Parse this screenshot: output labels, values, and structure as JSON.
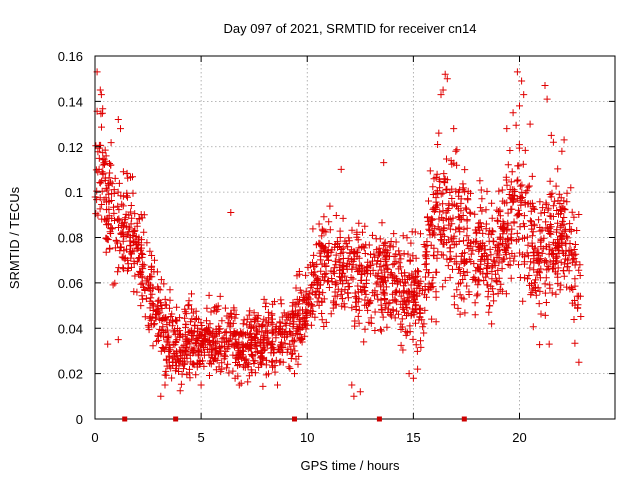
{
  "chart_data": {
    "type": "scatter",
    "title": "Day 097 of 2021, SRMTID for receiver cn14",
    "xlabel": "GPS time / hours",
    "ylabel": "SRMTID / TECUs",
    "xlim": [
      0,
      24.5
    ],
    "ylim": [
      0,
      0.16
    ],
    "x_ticks": [
      0,
      5,
      10,
      15,
      20
    ],
    "x_tick_labels": [
      "0",
      "5",
      "10",
      "15",
      "20"
    ],
    "y_ticks": [
      0,
      0.02,
      0.04,
      0.06,
      0.08,
      0.1,
      0.12,
      0.14,
      0.16
    ],
    "y_tick_labels": [
      "0",
      "0.02",
      "0.04",
      "0.06",
      "0.08",
      "0.1",
      "0.12",
      "0.14",
      "0.16"
    ],
    "grid": true,
    "marker": "+",
    "series_color": "#e00000",
    "gap_marker_color": "#cc0000",
    "gap_markers_x": [
      1.4,
      3.8,
      9.4,
      13.4,
      17.4
    ],
    "series": [
      {
        "name": "cn14",
        "profile_x": [
          0.0,
          0.3,
          0.6,
          1.0,
          1.5,
          2.0,
          2.5,
          3.0,
          3.5,
          4.0,
          5.0,
          6.0,
          7.0,
          8.0,
          9.0,
          9.8,
          10.3,
          11.0,
          12.0,
          13.0,
          14.0,
          14.8,
          15.3,
          15.8,
          16.3,
          17.0,
          18.0,
          18.8,
          19.3,
          19.8,
          20.3,
          20.8,
          21.5,
          22.0,
          22.5,
          22.9
        ],
        "profile_y": [
          0.1,
          0.115,
          0.095,
          0.085,
          0.085,
          0.075,
          0.06,
          0.045,
          0.038,
          0.035,
          0.033,
          0.035,
          0.032,
          0.035,
          0.038,
          0.043,
          0.06,
          0.068,
          0.065,
          0.062,
          0.062,
          0.055,
          0.05,
          0.075,
          0.09,
          0.08,
          0.075,
          0.07,
          0.08,
          0.095,
          0.085,
          0.07,
          0.075,
          0.08,
          0.07,
          0.06
        ],
        "spread_x": [
          0.0,
          1.0,
          2.0,
          3.0,
          5.0,
          9.0,
          10.0,
          15.0,
          16.0,
          19.0,
          20.0,
          21.0,
          23.0
        ],
        "spread_y": [
          0.045,
          0.04,
          0.035,
          0.028,
          0.022,
          0.022,
          0.03,
          0.033,
          0.045,
          0.04,
          0.045,
          0.04,
          0.035
        ],
        "peak_points": [
          [
            0.1,
            0.153
          ],
          [
            0.25,
            0.145
          ],
          [
            0.3,
            0.143
          ],
          [
            1.1,
            0.132
          ],
          [
            1.2,
            0.128
          ],
          [
            16.2,
            0.126
          ],
          [
            16.3,
            0.143
          ],
          [
            16.4,
            0.145
          ],
          [
            16.5,
            0.152
          ],
          [
            16.6,
            0.15
          ],
          [
            16.9,
            0.128
          ],
          [
            17.0,
            0.118
          ],
          [
            19.9,
            0.153
          ],
          [
            20.1,
            0.149
          ],
          [
            20.2,
            0.143
          ],
          [
            20.0,
            0.138
          ],
          [
            19.7,
            0.135
          ],
          [
            19.4,
            0.128
          ],
          [
            20.5,
            0.13
          ],
          [
            21.2,
            0.147
          ],
          [
            21.3,
            0.141
          ],
          [
            21.5,
            0.125
          ],
          [
            21.6,
            0.122
          ],
          [
            22.1,
            0.123
          ],
          [
            22.0,
            0.118
          ],
          [
            13.6,
            0.113
          ],
          [
            11.6,
            0.11
          ],
          [
            6.4,
            0.091
          ]
        ],
        "low_points": [
          [
            3.1,
            0.01
          ],
          [
            3.3,
            0.015
          ],
          [
            5.0,
            0.015
          ],
          [
            6.6,
            0.018
          ],
          [
            6.8,
            0.015
          ],
          [
            8.6,
            0.015
          ],
          [
            9.4,
            0.02
          ],
          [
            12.1,
            0.015
          ],
          [
            12.2,
            0.01
          ],
          [
            12.5,
            0.012
          ],
          [
            14.8,
            0.02
          ],
          [
            15.0,
            0.018
          ],
          [
            15.2,
            0.022
          ],
          [
            22.8,
            0.025
          ],
          [
            21.4,
            0.033
          ],
          [
            1.1,
            0.035
          ],
          [
            0.6,
            0.033
          ]
        ],
        "gap_intervals": [
          [
            23.0,
            24.5
          ]
        ],
        "point_count": 2300,
        "seed": 9721
      }
    ]
  }
}
